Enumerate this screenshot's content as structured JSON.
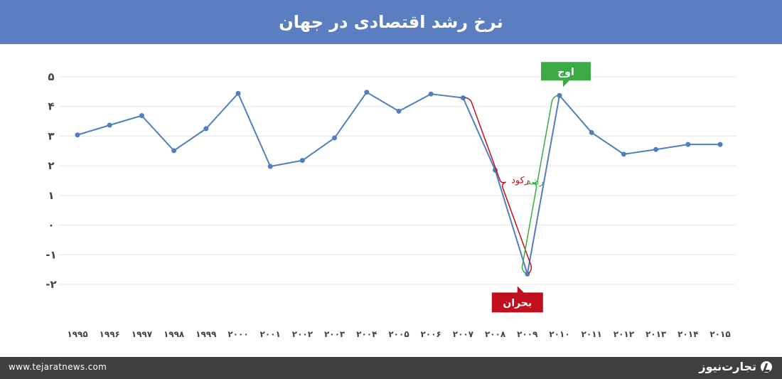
{
  "title": "نرخ رشد اقتصادی در جهان",
  "footer": {
    "url": "www.tejaratnews.com",
    "brand": "تجارت‌نیوز",
    "brand_logo_icon": "tejaratnews-logo-icon"
  },
  "colors": {
    "header": "#5a7ec0",
    "line": "#4f7fbf",
    "grid": "#e6e6e6",
    "recession": "#c0101e",
    "growth": "#3aaa45",
    "footer": "#3f3f3f"
  },
  "chart_data": {
    "type": "line",
    "title": "نرخ رشد اقتصادی در جهان",
    "xlabel": "",
    "ylabel": "",
    "ylim": [
      -2,
      5
    ],
    "grid": true,
    "y_ticks": [
      {
        "value": 5,
        "label": "۵"
      },
      {
        "value": 4,
        "label": "۴"
      },
      {
        "value": 3,
        "label": "۳"
      },
      {
        "value": 2,
        "label": "۲"
      },
      {
        "value": 1,
        "label": "۱"
      },
      {
        "value": 0,
        "label": "۰"
      },
      {
        "value": -1,
        "label": "-۱"
      },
      {
        "value": -2,
        "label": "-۲"
      }
    ],
    "x": [
      "۱۹۹۵",
      "۱۹۹۶",
      "۱۹۹۷",
      "۱۹۹۸",
      "۱۹۹۹",
      "۲۰۰۰",
      "۲۰۰۱",
      "۲۰۰۲",
      "۲۰۰۳",
      "۲۰۰۴",
      "۲۰۰۵",
      "۲۰۰۶",
      "۲۰۰۷",
      "۲۰۰۸",
      "۲۰۰۹",
      "۲۰۱۰",
      "۲۰۱۱",
      "۲۰۱۲",
      "۲۰۱۳",
      "۲۰۱۴",
      "۲۰۱۵"
    ],
    "values": [
      3.04,
      3.37,
      3.69,
      2.51,
      3.25,
      4.44,
      1.98,
      2.18,
      2.94,
      4.48,
      3.84,
      4.42,
      4.29,
      1.85,
      -1.65,
      4.37,
      3.12,
      2.39,
      2.55,
      2.72,
      2.72
    ],
    "annotations": {
      "peak_label": "اوج",
      "peak_index": 15,
      "crisis_label": "بحران",
      "crisis_index": 14,
      "recession_label": "رکود",
      "recession_from_index": 12,
      "growth_label": "رشد"
    }
  }
}
